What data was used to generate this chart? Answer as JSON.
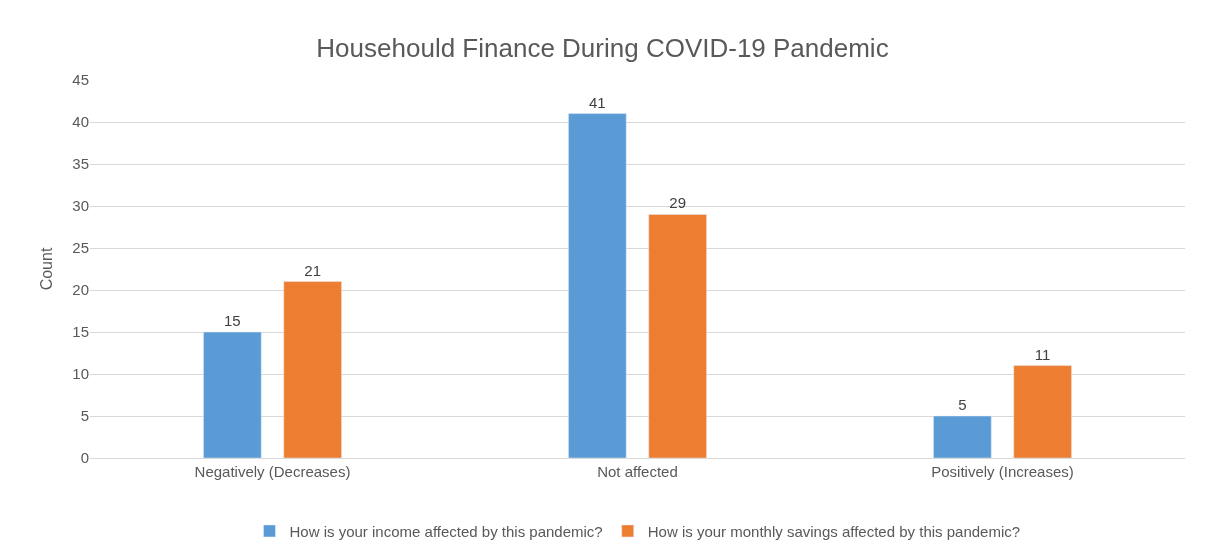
{
  "chart_data": {
    "type": "bar",
    "title": "Househould Finance During COVID-19 Pandemic",
    "ylabel": "Count",
    "categories": [
      "Negatively (Decreases)",
      "Not affected",
      "Positively (Increases)"
    ],
    "series": [
      {
        "name": "How is your income affected by this pandemic?",
        "color": "#5b9bd5",
        "values": [
          15,
          41,
          5
        ]
      },
      {
        "name": "How is your monthly savings affected by this pandemic?",
        "color": "#ed7d31",
        "values": [
          21,
          29,
          11
        ]
      }
    ],
    "ylim": [
      0,
      45
    ],
    "yticks": [
      0,
      5,
      10,
      15,
      20,
      25,
      30,
      35,
      40,
      45
    ],
    "grid": "y",
    "legend": "bottom",
    "data_labels": true
  }
}
